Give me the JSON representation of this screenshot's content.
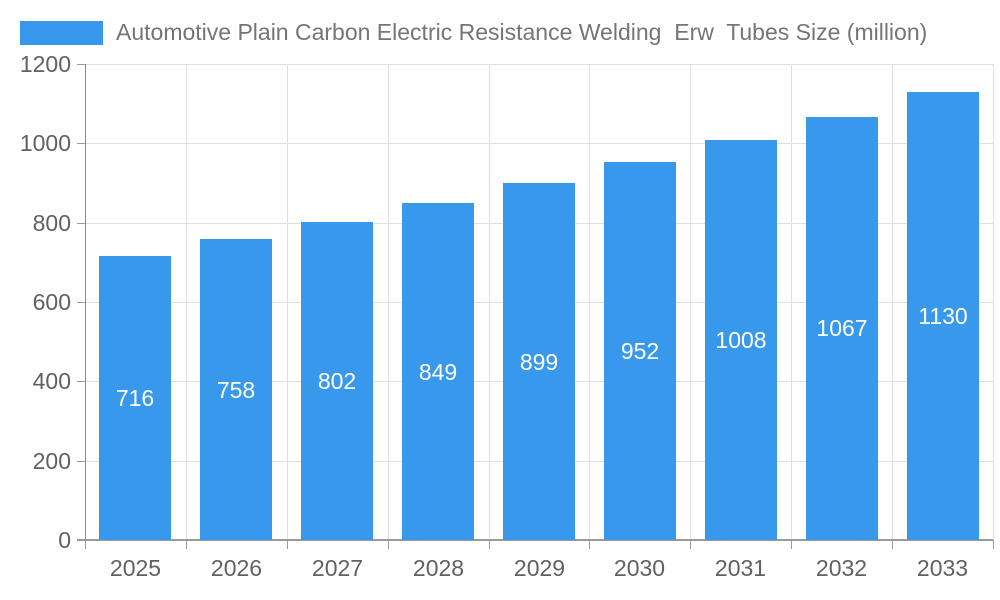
{
  "legend": {
    "title": "Automotive Plain Carbon Electric Resistance Welding  Erw  Tubes Size (million)",
    "swatch_color": "#3898ec"
  },
  "chart_data": {
    "type": "bar",
    "title": "Automotive Plain Carbon Electric Resistance Welding  Erw  Tubes Size (million)",
    "categories": [
      "2025",
      "2026",
      "2027",
      "2028",
      "2029",
      "2030",
      "2031",
      "2032",
      "2033"
    ],
    "values": [
      716,
      758,
      802,
      849,
      899,
      952,
      1008,
      1067,
      1130
    ],
    "xlabel": "",
    "ylabel": "",
    "ylim": [
      0,
      1200
    ],
    "ytick_step": 200,
    "yticks": [
      0,
      200,
      400,
      600,
      800,
      1000,
      1200
    ],
    "grid": true,
    "legend_position": "top-left",
    "bar_color": "#3898ec",
    "value_label_color": "#ffffff",
    "axis_label_color": "#616161",
    "title_color": "#757575",
    "gridline_color": "#e0e0e0"
  }
}
